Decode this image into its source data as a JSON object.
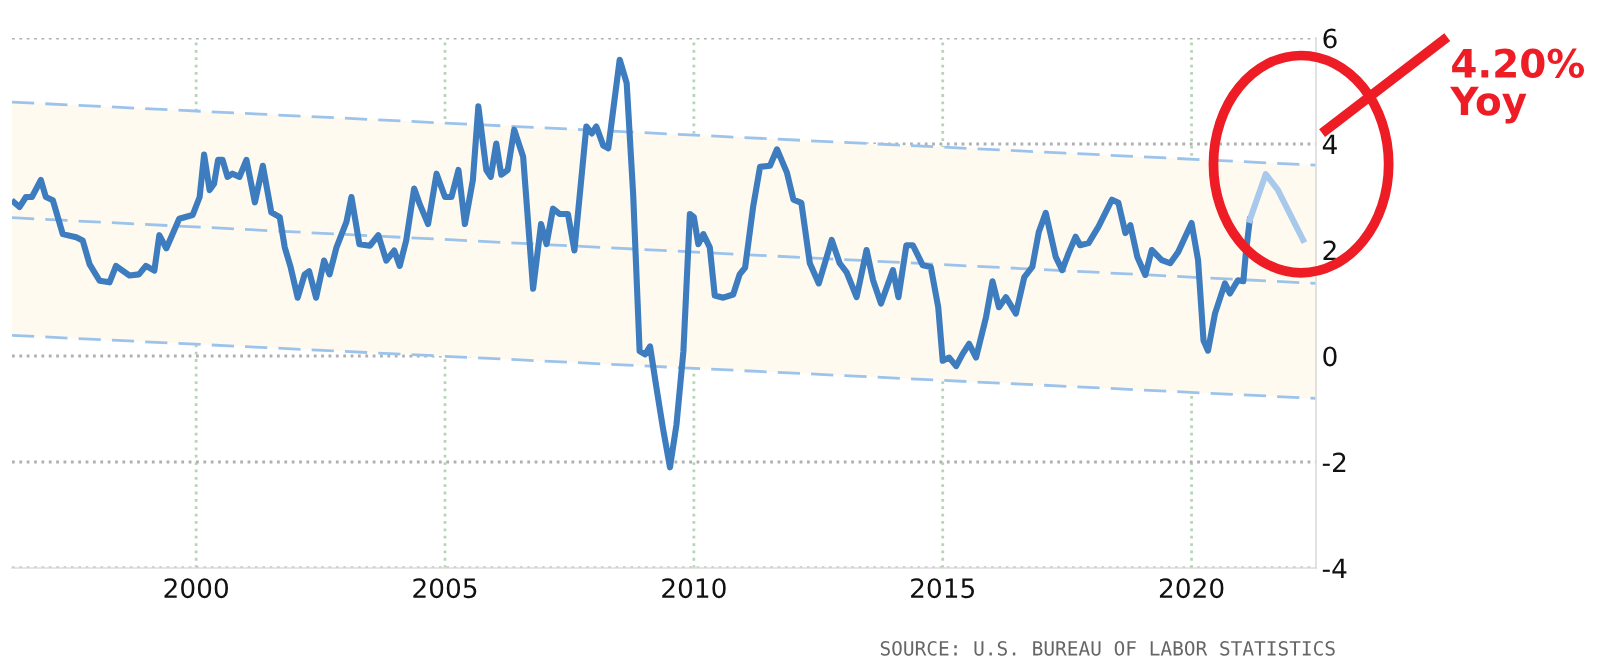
{
  "chart_data": {
    "type": "line",
    "xlim": [
      1996.3,
      2022.5
    ],
    "xticks": [
      2000,
      2005,
      2010,
      2015,
      2020
    ],
    "ylim": [
      -4,
      6
    ],
    "yticks": [
      -4,
      -2,
      0,
      2,
      4,
      6
    ],
    "grid": true,
    "marker": "none",
    "line_style": "solid",
    "series": [
      {
        "color": "#3d7dbf",
        "x": [
          1996.34,
          1996.45,
          1996.58,
          1996.7,
          1996.88,
          1996.98,
          1997.12,
          1997.32,
          1997.59,
          1997.72,
          1997.86,
          1998.06,
          1998.26,
          1998.39,
          1998.66,
          1998.85,
          1998.99,
          1999.16,
          1999.26,
          1999.4,
          1999.66,
          1999.93,
          2000.07,
          2000.16,
          2000.27,
          2000.36,
          2000.44,
          2000.53,
          2000.63,
          2000.73,
          2000.87,
          2001.01,
          2001.18,
          2001.34,
          2001.51,
          2001.68,
          2001.78,
          2001.9,
          2002.04,
          2002.18,
          2002.27,
          2002.41,
          2002.57,
          2002.68,
          2002.82,
          2003.02,
          2003.12,
          2003.28,
          2003.49,
          2003.66,
          2003.82,
          2003.98,
          2004.09,
          2004.22,
          2004.38,
          2004.49,
          2004.66,
          2004.83,
          2005.0,
          2005.13,
          2005.27,
          2005.4,
          2005.56,
          2005.67,
          2005.83,
          2005.92,
          2006.03,
          2006.13,
          2006.26,
          2006.39,
          2006.57,
          2006.77,
          2006.93,
          2007.04,
          2007.17,
          2007.3,
          2007.47,
          2007.6,
          2007.84,
          2007.95,
          2008.04,
          2008.18,
          2008.28,
          2008.51,
          2008.65,
          2008.78,
          2008.91,
          2009.02,
          2009.12,
          2009.25,
          2009.38,
          2009.52,
          2009.65,
          2009.79,
          2009.92,
          2010.0,
          2010.09,
          2010.19,
          2010.32,
          2010.42,
          2010.59,
          2010.79,
          2010.92,
          2011.03,
          2011.19,
          2011.33,
          2011.53,
          2011.67,
          2011.87,
          2012.0,
          2012.16,
          2012.33,
          2012.51,
          2012.67,
          2012.77,
          2012.93,
          2013.07,
          2013.27,
          2013.47,
          2013.6,
          2013.76,
          2014.0,
          2014.11,
          2014.27,
          2014.4,
          2014.6,
          2014.76,
          2014.91,
          2015.0,
          2015.13,
          2015.27,
          2015.4,
          2015.53,
          2015.67,
          2015.87,
          2016.0,
          2016.13,
          2016.27,
          2016.47,
          2016.64,
          2016.8,
          2016.93,
          2017.07,
          2017.27,
          2017.4,
          2017.53,
          2017.67,
          2017.76,
          2017.93,
          2018.13,
          2018.4,
          2018.53,
          2018.67,
          2018.77,
          2018.91,
          2019.07,
          2019.2,
          2019.4,
          2019.57,
          2019.73,
          2020.0,
          2020.13,
          2020.24,
          2020.33,
          2020.47,
          2020.67,
          2020.77,
          2020.93,
          2021.04,
          2021.09,
          2021.17
        ],
        "values": [
          2.9,
          2.81,
          3.0,
          3.0,
          3.32,
          3.0,
          2.94,
          2.3,
          2.24,
          2.18,
          1.73,
          1.42,
          1.39,
          1.7,
          1.52,
          1.54,
          1.7,
          1.61,
          2.28,
          2.03,
          2.59,
          2.66,
          3.0,
          3.8,
          3.13,
          3.25,
          3.7,
          3.7,
          3.38,
          3.44,
          3.38,
          3.7,
          2.9,
          3.59,
          2.71,
          2.62,
          2.05,
          1.67,
          1.1,
          1.54,
          1.6,
          1.1,
          1.8,
          1.54,
          2.05,
          2.53,
          3.0,
          2.11,
          2.08,
          2.28,
          1.8,
          1.99,
          1.7,
          2.18,
          3.16,
          2.87,
          2.49,
          3.44,
          3.0,
          3.0,
          3.51,
          2.49,
          3.32,
          4.71,
          3.51,
          3.38,
          4.01,
          3.42,
          3.51,
          4.27,
          3.76,
          1.27,
          2.49,
          2.11,
          2.78,
          2.68,
          2.68,
          1.99,
          4.33,
          4.2,
          4.33,
          3.97,
          3.92,
          5.59,
          5.15,
          3.06,
          0.09,
          0.03,
          0.18,
          -0.61,
          -1.37,
          -2.1,
          -1.3,
          0.09,
          2.68,
          2.62,
          2.11,
          2.3,
          2.05,
          1.14,
          1.1,
          1.16,
          1.54,
          1.67,
          2.81,
          3.57,
          3.59,
          3.9,
          3.46,
          2.95,
          2.89,
          1.75,
          1.37,
          1.87,
          2.19,
          1.75,
          1.58,
          1.11,
          2.0,
          1.43,
          0.99,
          1.62,
          1.11,
          2.09,
          2.09,
          1.71,
          1.68,
          0.92,
          -0.09,
          -0.03,
          -0.19,
          0.04,
          0.23,
          -0.03,
          0.73,
          1.41,
          0.92,
          1.11,
          0.8,
          1.49,
          1.68,
          2.34,
          2.7,
          1.87,
          1.62,
          1.94,
          2.25,
          2.09,
          2.13,
          2.44,
          2.95,
          2.89,
          2.32,
          2.47,
          1.87,
          1.53,
          2.0,
          1.81,
          1.75,
          1.96,
          2.51,
          1.81,
          0.29,
          0.1,
          0.8,
          1.37,
          1.18,
          1.43,
          1.41,
          1.94,
          2.57
        ]
      },
      {
        "color": "#a9c9ec",
        "x": [
          2021.17,
          2021.49,
          2021.73,
          2022.24
        ],
        "values": [
          2.57,
          3.43,
          3.14,
          2.19
        ]
      },
      {
        "color": "#9cc3ec",
        "line_style": "dashed",
        "x": [
          1996.3,
          2022.5
        ],
        "values": [
          2.61,
          1.37
        ],
        "lower": [
          0.39,
          -0.8
        ],
        "upper": [
          4.79,
          3.6
        ]
      },
      {
        "color": "#9cc3ec",
        "line_style": "dashed",
        "x": [
          1996.3,
          2022.5
        ],
        "values": [
          4.79,
          3.6
        ]
      },
      {
        "color": "#9cc3ec",
        "line_style": "dashed",
        "x": [
          1996.3,
          2022.5
        ],
        "values": [
          0.39,
          -0.8
        ]
      }
    ],
    "annotations": [
      "4.20%\nYoy",
      "SOURCE: U.S. BUREAU OF LABOR STATISTICS"
    ]
  }
}
